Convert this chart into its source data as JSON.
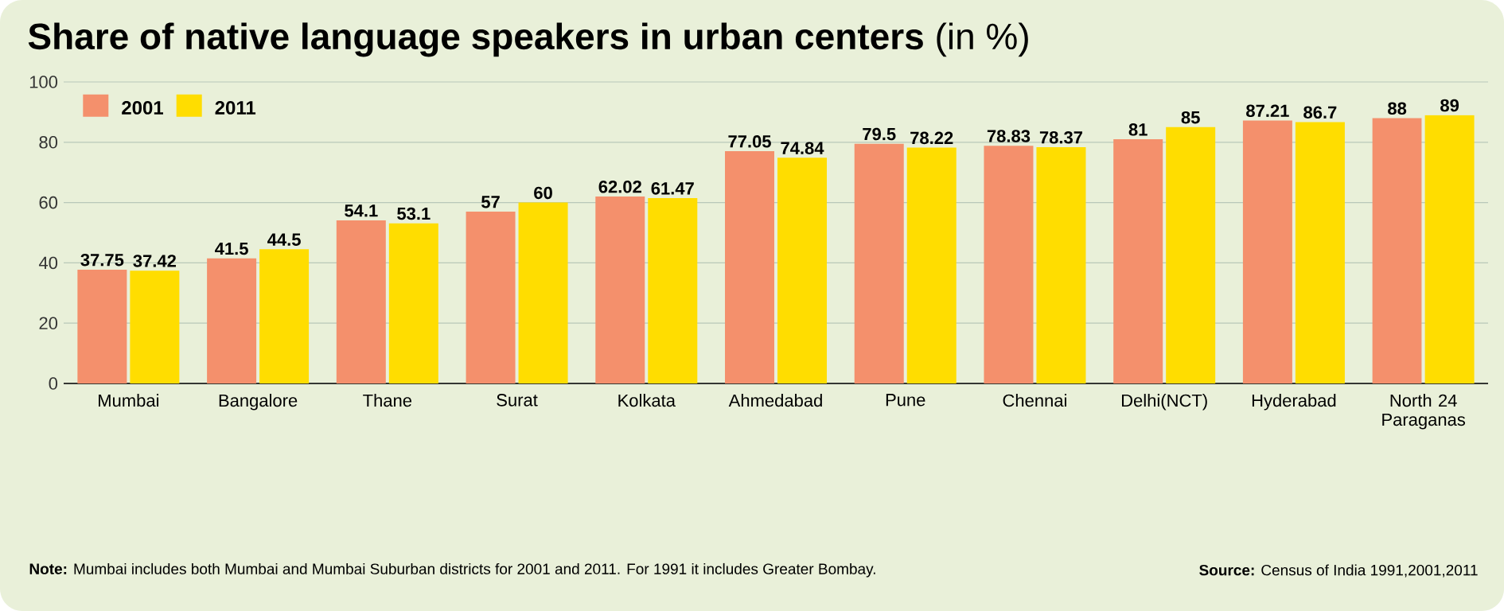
{
  "chart_data": {
    "type": "bar",
    "title": "**Share of native language speakers in urban centers** (in %)",
    "categories": [
      "Mumbai",
      "Bangalore",
      "Thane",
      "Surat",
      "Kolkata",
      "Ahmedabad",
      "Pune",
      "Chennai",
      "Delhi(NCT)",
      "Hyderabad",
      "North 24 Paraganas"
    ],
    "series": [
      {
        "name": "2001",
        "color": "#f4906c",
        "values": [
          37.75,
          41.5,
          54.1,
          57,
          62.02,
          77.05,
          79.5,
          78.83,
          81,
          87.21,
          88
        ]
      },
      {
        "name": "2011",
        "color": "#ffdd00",
        "values": [
          37.42,
          44.5,
          53.1,
          60,
          61.47,
          74.84,
          78.22,
          78.37,
          85,
          86.7,
          89
        ]
      }
    ],
    "ylim": [
      0,
      100
    ],
    "yticks": [
      0,
      20,
      40,
      60,
      80,
      100
    ],
    "grid": "y",
    "legend": "top left",
    "data_labels": true,
    "annotations": [
      "**Note:** Mumbai includes both Mumbai and Mumbai Suburban districts for 2001 and 2011. For 1991 it includes Greater Bombay.",
      "**Source:** Census of India 1991,2001,2011"
    ]
  }
}
